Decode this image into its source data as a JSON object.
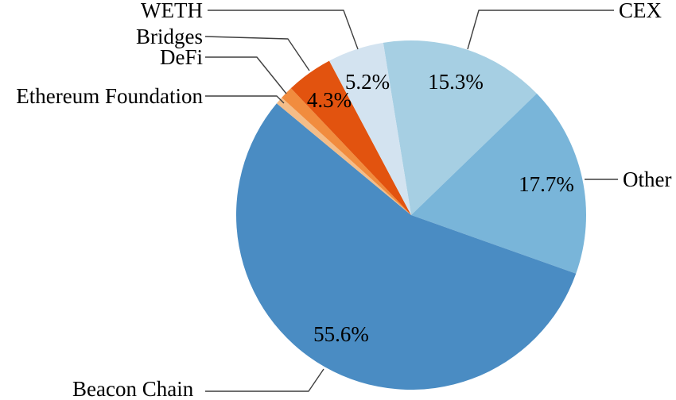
{
  "figure": {
    "background": "#ffffff",
    "text_color": "#000000",
    "leader_line_color": "#3f3f3f"
  },
  "chart_data": {
    "type": "pie",
    "title": "",
    "unit": "percent",
    "direction": "clockwise",
    "start_angle_deg": -9.2,
    "legend_position": "callout-labels",
    "slices": [
      {
        "label": "CEX",
        "value": 15.3,
        "percent_label": "15.3%",
        "color": "#a6cfe3"
      },
      {
        "label": "Other",
        "value": 17.7,
        "percent_label": "17.7%",
        "color": "#79b5d9"
      },
      {
        "label": "Beacon Chain",
        "value": 55.6,
        "percent_label": "55.6%",
        "color": "#4a8cc3"
      },
      {
        "label": "Ethereum Foundation",
        "value": 0.7,
        "percent_label": "",
        "color": "#f4bd88"
      },
      {
        "label": "DeFi",
        "value": 1.2,
        "percent_label": "",
        "color": "#f18c3e"
      },
      {
        "label": "Bridges",
        "value": 4.3,
        "percent_label": "4.3%",
        "color": "#e2530f"
      },
      {
        "label": "WETH",
        "value": 5.2,
        "percent_label": "5.2%",
        "color": "#d3e3f0"
      }
    ]
  }
}
